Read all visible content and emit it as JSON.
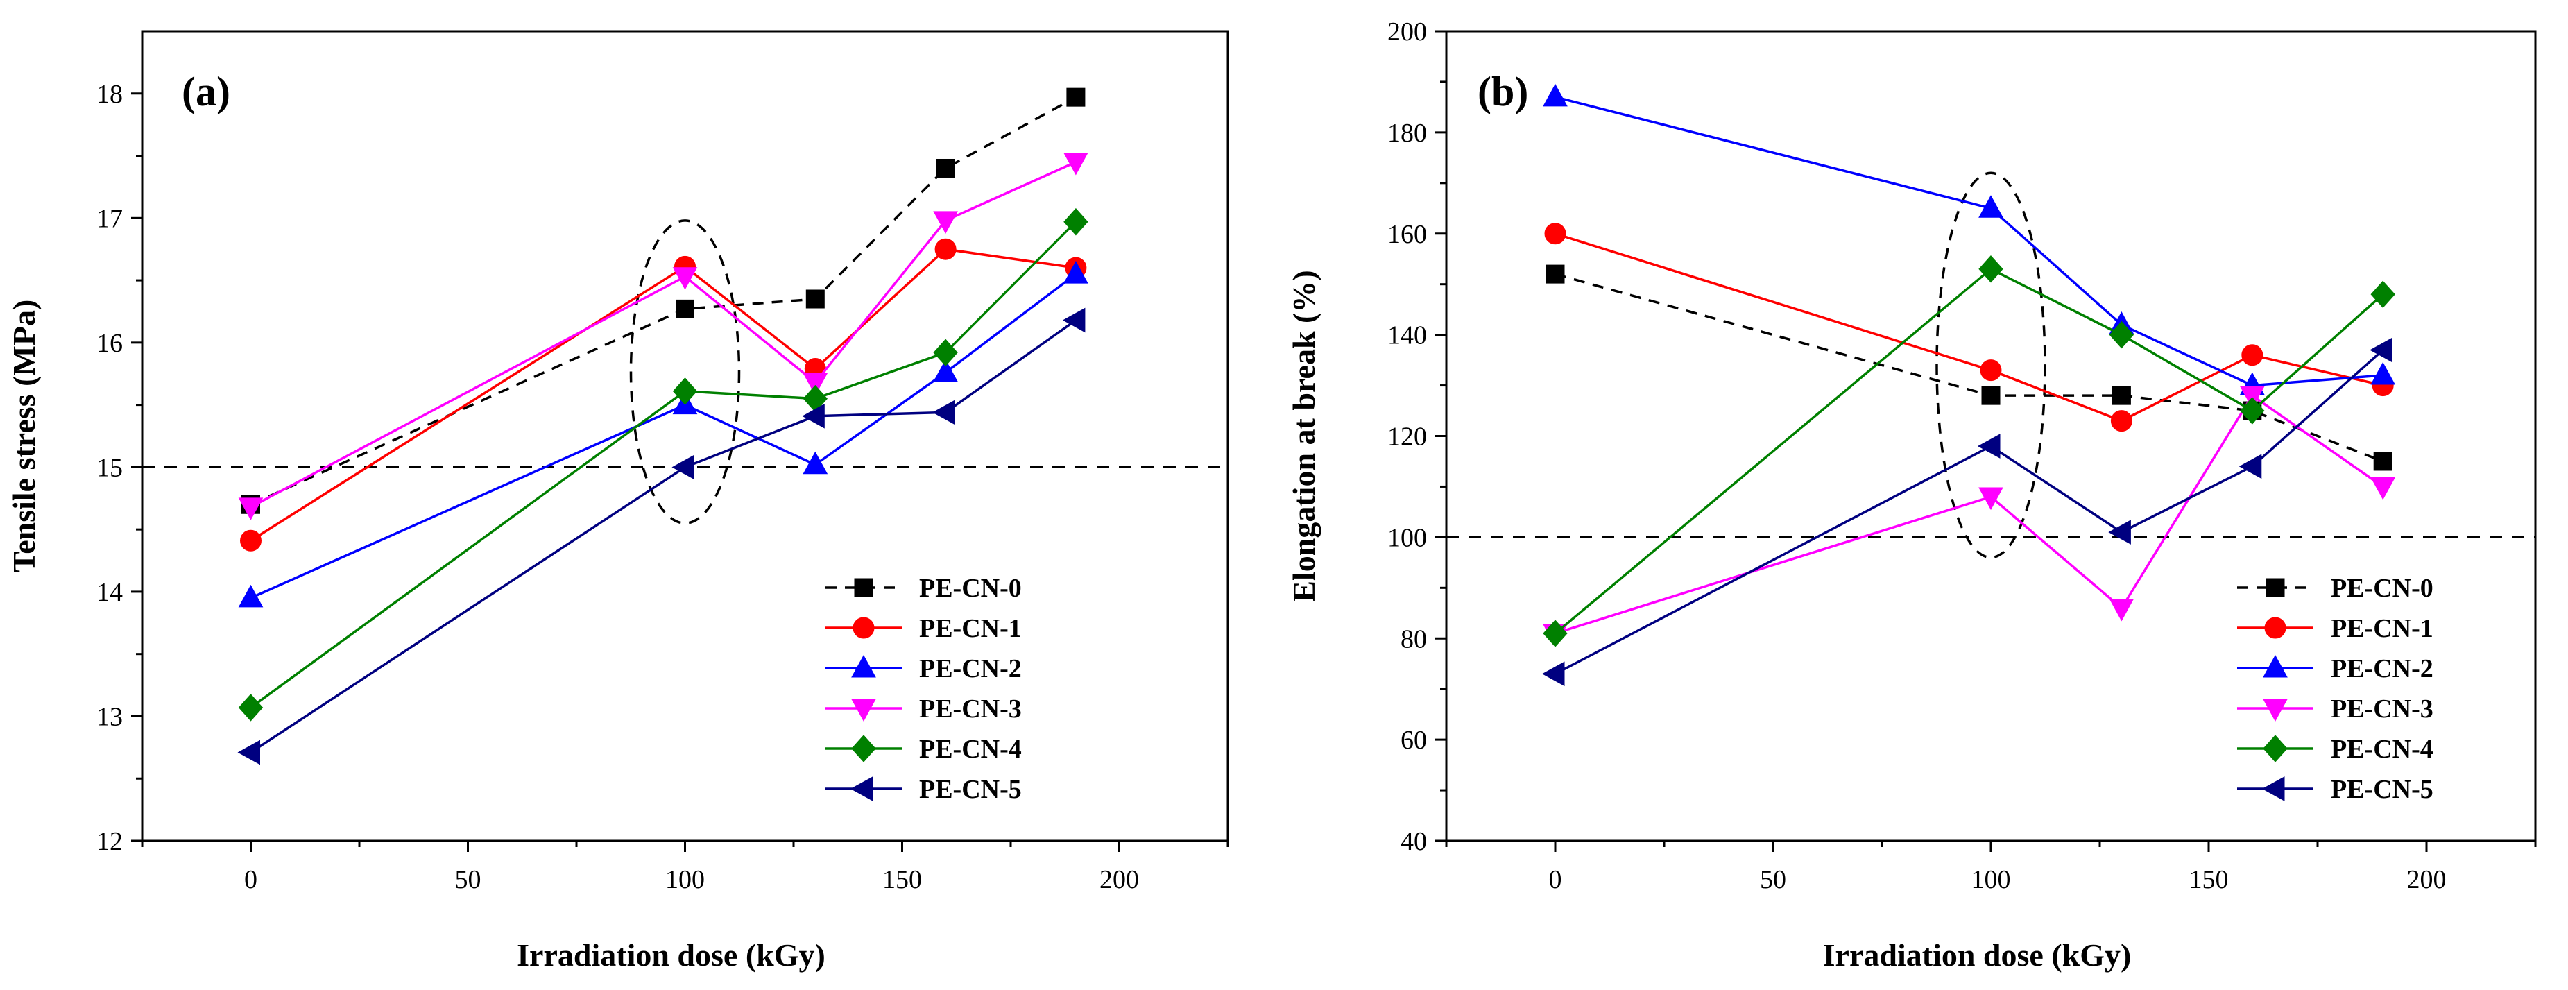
{
  "chart_data": [
    {
      "type": "line",
      "panel_label": "(a)",
      "xlabel": "Irradiation dose (kGy)",
      "ylabel": "Tensile stress (MPa)",
      "xlim": [
        -25,
        225
      ],
      "ylim": [
        12,
        18.5
      ],
      "xticks": [
        0,
        50,
        100,
        150,
        200
      ],
      "yticks": [
        12,
        13,
        14,
        15,
        16,
        17,
        18
      ],
      "reference_line": 15,
      "highlight_ellipse": {
        "x": 100,
        "y_min": 14.55,
        "y_max": 16.98
      },
      "legend_position": "bottom-right",
      "x": [
        0,
        100,
        130,
        160,
        190
      ],
      "series": [
        {
          "name": "PE-CN-0",
          "color": "#000000",
          "marker": "square",
          "dashed": true,
          "values": [
            14.7,
            16.27,
            16.35,
            17.4,
            17.97
          ]
        },
        {
          "name": "PE-CN-1",
          "color": "#ff0000",
          "marker": "circle",
          "dashed": false,
          "values": [
            14.41,
            16.61,
            15.79,
            16.75,
            16.6
          ]
        },
        {
          "name": "PE-CN-2",
          "color": "#0000ff",
          "marker": "triangle-up",
          "dashed": false,
          "values": [
            13.95,
            15.5,
            15.02,
            15.76,
            16.55
          ]
        },
        {
          "name": "PE-CN-3",
          "color": "#ff00ff",
          "marker": "triangle-down",
          "dashed": false,
          "values": [
            14.68,
            16.53,
            15.68,
            16.98,
            17.45
          ]
        },
        {
          "name": "PE-CN-4",
          "color": "#008000",
          "marker": "diamond",
          "dashed": false,
          "values": [
            13.07,
            15.61,
            15.55,
            15.92,
            16.97
          ]
        },
        {
          "name": "PE-CN-5",
          "color": "#000080",
          "marker": "triangle-left",
          "dashed": false,
          "values": [
            12.71,
            15.0,
            15.41,
            15.44,
            16.18
          ]
        }
      ]
    },
    {
      "type": "line",
      "panel_label": "(b)",
      "xlabel": "Irradiation dose (kGy)",
      "ylabel": "Elongation at break (%)",
      "xlim": [
        -25,
        225
      ],
      "ylim": [
        40,
        200
      ],
      "xticks": [
        0,
        50,
        100,
        150,
        200
      ],
      "yticks": [
        40,
        60,
        80,
        100,
        120,
        140,
        160,
        180,
        200
      ],
      "reference_line": 100,
      "highlight_ellipse": {
        "x": 100,
        "y_min": 96,
        "y_max": 172
      },
      "legend_position": "bottom-right",
      "x": [
        0,
        100,
        130,
        160,
        190
      ],
      "series": [
        {
          "name": "PE-CN-0",
          "color": "#000000",
          "marker": "square",
          "dashed": true,
          "values": [
            152,
            128,
            128,
            125,
            115
          ]
        },
        {
          "name": "PE-CN-1",
          "color": "#ff0000",
          "marker": "circle",
          "dashed": false,
          "values": [
            160,
            133,
            123,
            136,
            130
          ]
        },
        {
          "name": "PE-CN-2",
          "color": "#0000ff",
          "marker": "triangle-up",
          "dashed": false,
          "values": [
            187,
            165,
            142,
            130,
            132
          ]
        },
        {
          "name": "PE-CN-3",
          "color": "#ff00ff",
          "marker": "triangle-down",
          "dashed": false,
          "values": [
            81,
            108,
            86,
            128,
            110
          ]
        },
        {
          "name": "PE-CN-4",
          "color": "#008000",
          "marker": "diamond",
          "dashed": false,
          "values": [
            81,
            153,
            140,
            125,
            148
          ]
        },
        {
          "name": "PE-CN-5",
          "color": "#000080",
          "marker": "triangle-left",
          "dashed": false,
          "values": [
            73,
            118,
            101,
            114,
            137
          ]
        }
      ]
    }
  ]
}
